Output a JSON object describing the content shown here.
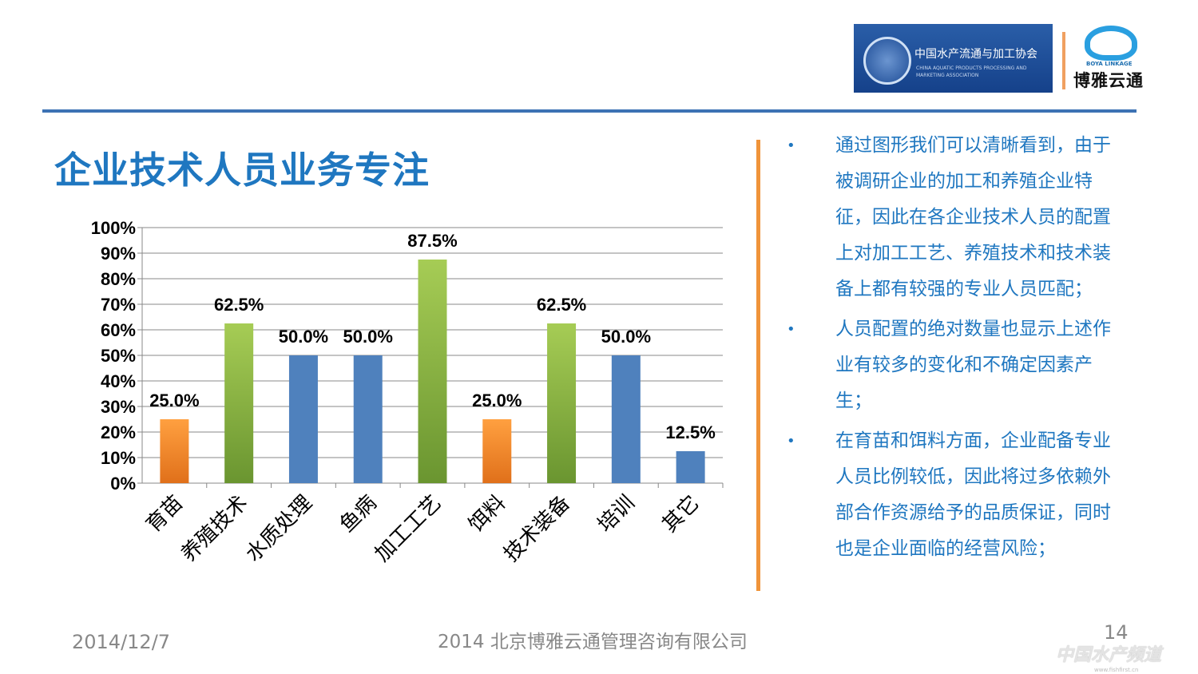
{
  "header": {
    "logo_left_cn": "中国水产流通与加工协会",
    "logo_left_en": "CHINA AQUATIC PRODUCTS PROCESSING AND MARKETING ASSOCIATION",
    "logo_right_en": "BOYA LINKAGE",
    "logo_right_cn": "博雅云通"
  },
  "title": "企业技术人员业务专注",
  "bullets": [
    "通过图形我们可以清晰看到，由于被调研企业的加工和养殖企业特征，因此在各企业技术人员的配置上对加工工艺、养殖技术和技术装备上都有较强的专业人员匹配；",
    "人员配置的绝对数量也显示上述作业有较多的变化和不确定因素产生；",
    "在育苗和饵料方面，企业配备专业人员比例较低，因此将过多依赖外部合作资源给予的品质保证，同时也是企业面临的经营风险；"
  ],
  "footer": {
    "date": "2014/12/7",
    "company": "2014 北京博雅云通管理咨询有限公司",
    "page": "14",
    "watermark": "中国水产频道",
    "watermark_url": "www.fishfirst.cn"
  },
  "chart_data": {
    "type": "bar",
    "title": "",
    "xlabel": "",
    "ylabel": "",
    "ylim": [
      0,
      100
    ],
    "yticks": [
      "0%",
      "10%",
      "20%",
      "30%",
      "40%",
      "50%",
      "60%",
      "70%",
      "80%",
      "90%",
      "100%"
    ],
    "grid": true,
    "categories": [
      "育苗",
      "养殖技术",
      "水质处理",
      "鱼病",
      "加工工艺",
      "饵料",
      "技术装备",
      "培训",
      "其它"
    ],
    "values": [
      25.0,
      62.5,
      50.0,
      50.0,
      87.5,
      25.0,
      62.5,
      50.0,
      12.5
    ],
    "data_labels": [
      "25.0%",
      "62.5%",
      "50.0%",
      "50.0%",
      "87.5%",
      "25.0%",
      "62.5%",
      "50.0%",
      "12.5%"
    ],
    "bar_colors": [
      "orange",
      "green",
      "blue",
      "blue",
      "green",
      "orange",
      "green",
      "blue",
      "blue"
    ],
    "palette": {
      "orange": "#f08a24",
      "green": "#7fae3a",
      "blue": "#4f81bd"
    }
  }
}
